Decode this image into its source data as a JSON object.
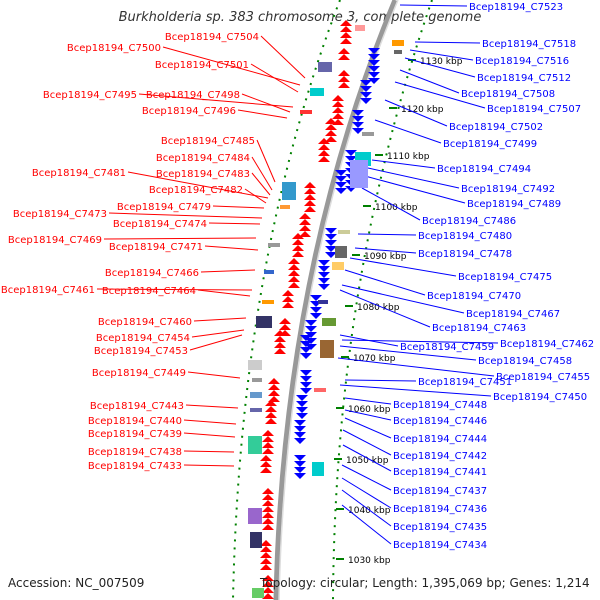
{
  "title": "Burkholderia sp. 383 chromosome 3, complete genome",
  "accession_label": "Accession: NC_007509",
  "summary_label": "Topology: circular; Length: 1,395,069 bp; Genes: 1,214",
  "colors": {
    "forward_strand": "#ff0000",
    "reverse_strand": "#0000ff",
    "backbone": "#999999",
    "ruler": "#008000"
  },
  "ruler_ticks": [
    "1030 kbp",
    "1040 kbp",
    "1050 kbp",
    "1060 kbp",
    "1070 kbp",
    "1080 kbp",
    "1090 kbp",
    "1100 kbp",
    "1110 kbp",
    "1120 kbp",
    "1130 kbp"
  ],
  "left_labels": [
    "Bcep18194_C7504",
    "Bcep18194_C7500",
    "Bcep18194_C7501",
    "Bcep18194_C7495",
    "Bcep18194_C7498",
    "Bcep18194_C7496",
    "Bcep18194_C7485",
    "Bcep18194_C7484",
    "Bcep18194_C7483",
    "Bcep18194_C7481",
    "Bcep18194_C7482",
    "Bcep18194_C7479",
    "Bcep18194_C7473",
    "Bcep18194_C7474",
    "Bcep18194_C7469",
    "Bcep18194_C7471",
    "Bcep18194_C7466",
    "Bcep18194_C7461",
    "Bcep18194_C7464",
    "Bcep18194_C7460",
    "Bcep18194_C7454",
    "Bcep18194_C7453",
    "Bcep18194_C7449",
    "Bcep18194_C7443",
    "Bcep18194_C7440",
    "Bcep18194_C7439",
    "Bcep18194_C7438",
    "Bcep18194_C7433"
  ],
  "right_labels": [
    "Bcep18194_C7523",
    "Bcep18194_C7518",
    "Bcep18194_C7516",
    "Bcep18194_C7512",
    "Bcep18194_C7508",
    "Bcep18194_C7507",
    "Bcep18194_C7502",
    "Bcep18194_C7499",
    "Bcep18194_C7494",
    "Bcep18194_C7492",
    "Bcep18194_C7489",
    "Bcep18194_C7486",
    "Bcep18194_C7480",
    "Bcep18194_C7478",
    "Bcep18194_C7475",
    "Bcep18194_C7470",
    "Bcep18194_C7467",
    "Bcep18194_C7463",
    "Bcep18194_C7462",
    "Bcep18194_C7459",
    "Bcep18194_C7458",
    "Bcep18194_C7455",
    "Bcep18194_C7451",
    "Bcep18194_C7450",
    "Bcep18194_C7448",
    "Bcep18194_C7446",
    "Bcep18194_C7444",
    "Bcep18194_C7442",
    "Bcep18194_C7441",
    "Bcep18194_C7437",
    "Bcep18194_C7436",
    "Bcep18194_C7435",
    "Bcep18194_C7434"
  ]
}
